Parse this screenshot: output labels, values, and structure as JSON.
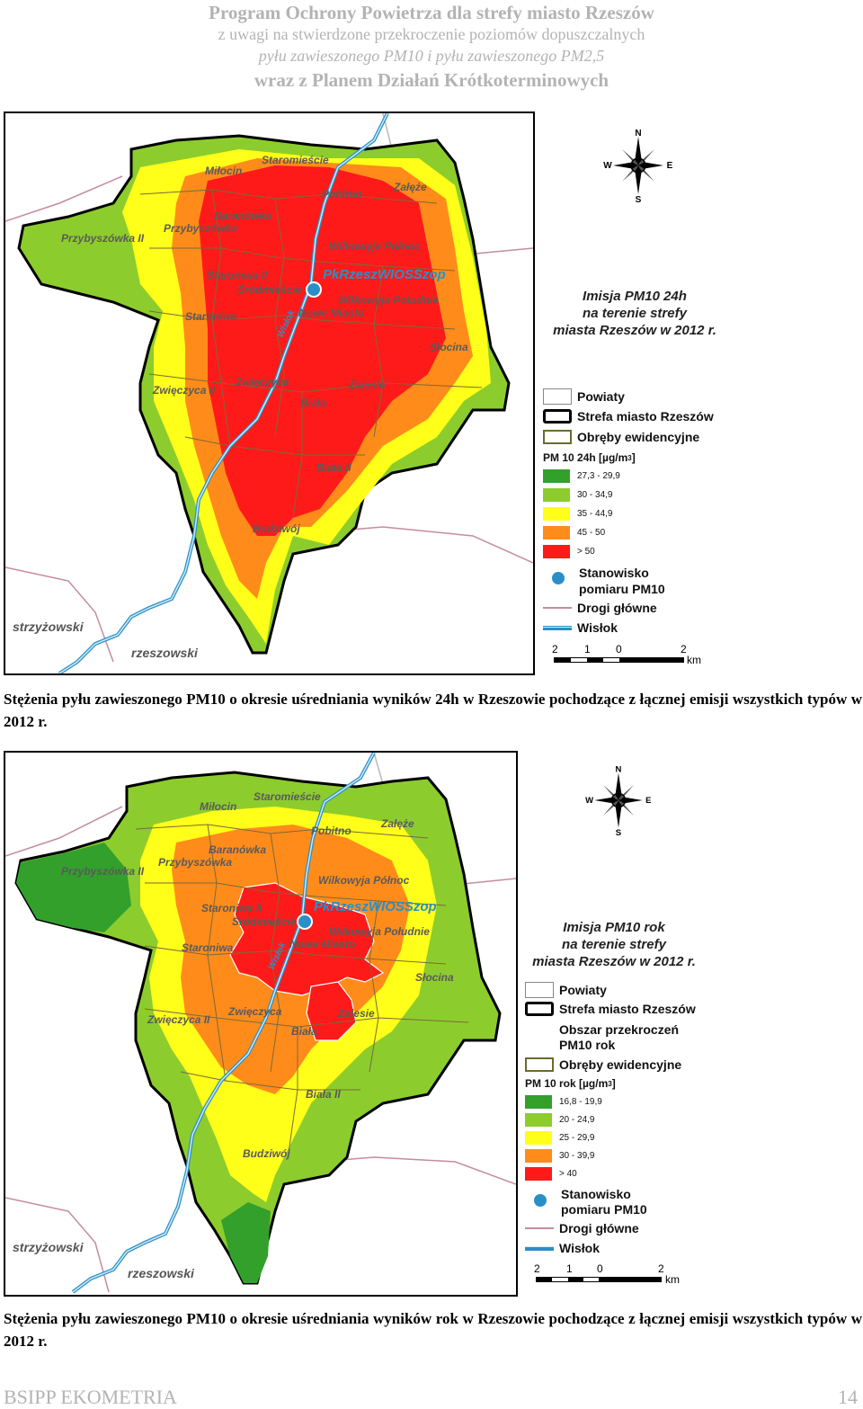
{
  "header": {
    "line1": "Program Ochrony Powietrza dla strefy miasto Rzeszów",
    "line2": "z uwagi na stwierdzone przekroczenie poziomów dopuszczalnych",
    "line3": "pyłu zawieszonego PM10 i pyłu zawieszonego PM2,5",
    "line4": "wraz z Planem Działań Krótkoterminowych"
  },
  "map1": {
    "title": [
      "Imisja PM10 24h",
      "na terenie strefy",
      "miasta Rzeszów w 2012 r."
    ],
    "station_label": "PkRzeszWIOSSzop",
    "river_label": "Wisłok",
    "places": {
      "milocin": "Miłocin",
      "staromiescie": "Staromieście",
      "pobitno": "Pobitno",
      "zaleze": "Załęże",
      "przybyszowka2": "Przybyszówka II",
      "baranowka": "Baranówka",
      "przybyszowka": "Przybyszówka",
      "wilkowyja_polnoc": "Wilkowyja Północ",
      "staroniwa2": "Staroniwa II",
      "srodmiescie": "Śródmieście",
      "wilkowyja_poludnie": "Wilkowyja Południe",
      "staroniwa": "Staroniwa",
      "nowe_miasto": "Nowe Miasto",
      "slocina": "Słocina",
      "zwieczyca2": "Zwięczyca II",
      "zwieczyca": "Zwięczyca",
      "zalesie": "Zalesie",
      "biala": "Biała",
      "biala2": "Biała II",
      "budziwoj": "Budziwój"
    },
    "counties": {
      "strzyzowski": "strzyżowski",
      "rzeszowski": "rzeszowski"
    },
    "legend": {
      "powiaty": "Powiaty",
      "strefa": "Strefa miasto Rzeszów",
      "obreby": "Obręby ewidencyjne",
      "scale_title": "PM 10 24h [µg/m",
      "scale_sup": "3",
      "scale_close": "]",
      "classes": [
        {
          "label": "27,3 - 29,9",
          "color": "#33a02c"
        },
        {
          "label": "30 - 34,9",
          "color": "#8ccd2d"
        },
        {
          "label": "35 - 44,9",
          "color": "#ffff1a"
        },
        {
          "label": "45 - 50",
          "color": "#ff8c1a"
        },
        {
          "label": "> 50",
          "color": "#ff1a1a"
        }
      ],
      "station1": "Stanowisko",
      "station2": "pomiaru PM10",
      "roads": "Drogi główne",
      "river": "Wisłok"
    },
    "scale": {
      "n2a": "2",
      "n1": "1",
      "n0": "0",
      "n2b": "2",
      "unit": "km"
    }
  },
  "caption1": "Stężenia pyłu zawieszonego PM10 o okresie uśredniania wyników 24h w Rzeszowie pochodzące z łącznej emisji wszystkich typów w 2012 r.",
  "map2": {
    "title": [
      "Imisja PM10 rok",
      "na terenie strefy",
      "miasta Rzeszów w 2012 r."
    ],
    "station_label": "PkRzeszWIOSSzop",
    "river_label": "Wisłok",
    "places": {
      "milocin": "Miłocin",
      "staromiescie": "Staromieście",
      "pobitno": "Pobitno",
      "zaleze": "Załęże",
      "przybyszowka2": "Przybyszówka II",
      "baranowka": "Baranówka",
      "przybyszowka": "Przybyszówka",
      "wilkowyja_polnoc": "Wilkowyja Północ",
      "staroniwa2": "Staroniwa II",
      "srodmiescie": "Śródmieście",
      "wilkowyja_poludnie": "Wilkowyja Południe",
      "staroniwa": "Staroniwa",
      "nowe_miasto": "Nowe Miasto",
      "slocina": "Słocina",
      "zwieczyca2": "Zwięczyca II",
      "zwieczyca": "Zwięczyca",
      "zalesie": "Zalesie",
      "biala": "Biała",
      "biala2": "Biała II",
      "budziwoj": "Budziwój"
    },
    "counties": {
      "strzyzowski": "strzyżowski",
      "rzeszowski": "rzeszowski"
    },
    "legend": {
      "powiaty": "Powiaty",
      "strefa": "Strefa miasto Rzeszów",
      "obszar1": "Obszar przekroczeń",
      "obszar2": "PM10 rok",
      "obreby": "Obręby ewidencyjne",
      "scale_title": "PM 10 rok [µg/m",
      "scale_sup": "3",
      "scale_close": "]",
      "classes": [
        {
          "label": "16,8 - 19,9",
          "color": "#33a02c"
        },
        {
          "label": "20 - 24,9",
          "color": "#8ccd2d"
        },
        {
          "label": "25 - 29,9",
          "color": "#ffff1a"
        },
        {
          "label": "30 - 39,9",
          "color": "#ff8c1a"
        },
        {
          "label": "> 40",
          "color": "#ff1a1a"
        }
      ],
      "station1": "Stanowisko",
      "station2": "pomiaru PM10",
      "roads": "Drogi główne",
      "river": "Wisłok"
    },
    "scale": {
      "n2a": "2",
      "n1": "1",
      "n0": "0",
      "n2b": "2",
      "unit": "km"
    }
  },
  "caption2": "Stężenia pyłu zawieszonego PM10 o okresie uśredniania wyników rok w Rzeszowie pochodzące z łącznej emisji wszystkich typów w 2012 r.",
  "compass": {
    "n": "N",
    "s": "S",
    "e": "E",
    "w": "W"
  },
  "footer": {
    "left": "BSIPP EKOMETRIA",
    "page": "14"
  }
}
